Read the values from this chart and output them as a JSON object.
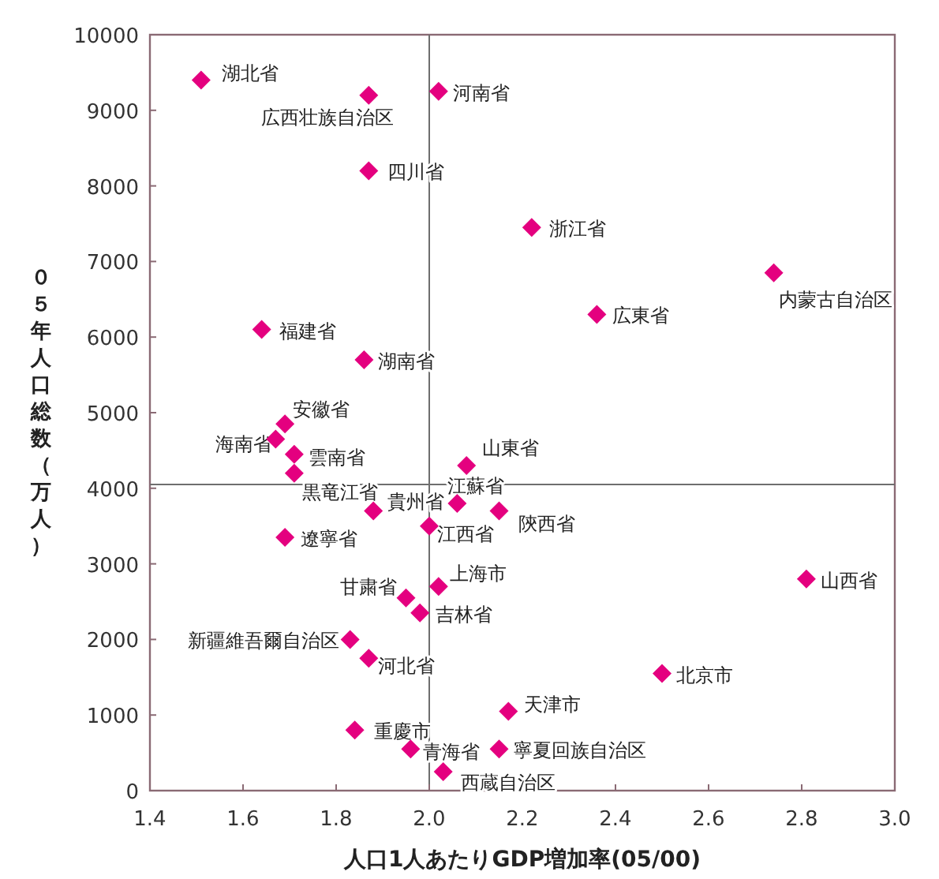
{
  "chart_data": {
    "type": "scatter",
    "xlabel": "人口1人あたりGDP増加率(05/00)",
    "ylabel": "０５年人口総数（万人）",
    "marker": "diamond",
    "xlim": [
      1.4,
      3.0
    ],
    "ylim": [
      0,
      10000
    ],
    "xticks": [
      {
        "value": 1.4,
        "label": "1.4"
      },
      {
        "value": 1.6,
        "label": "1.6"
      },
      {
        "value": 1.8,
        "label": "1.8"
      },
      {
        "value": 2.0,
        "label": "2.0"
      },
      {
        "value": 2.2,
        "label": "2.2"
      },
      {
        "value": 2.4,
        "label": "2.4"
      },
      {
        "value": 2.6,
        "label": "2.6"
      },
      {
        "value": 2.8,
        "label": "2.8"
      },
      {
        "value": 3.0,
        "label": "3.0"
      }
    ],
    "yticks": [
      0,
      1000,
      2000,
      3000,
      4000,
      5000,
      6000,
      7000,
      8000,
      9000,
      10000
    ],
    "ref_lines": [
      {
        "axis": "x",
        "value": 2.0,
        "color": "#6e6e6e"
      },
      {
        "axis": "y",
        "value": 4050,
        "color": "#6e6e6e"
      }
    ],
    "series": [
      {
        "color": "#e4007f",
        "x": [
          1.51,
          1.87,
          2.02,
          1.87,
          2.22,
          2.74,
          2.36,
          1.64,
          1.86,
          1.69,
          1.67,
          1.71,
          1.71,
          2.08,
          1.88,
          2.06,
          2.15,
          2.0,
          1.69,
          2.02,
          2.81,
          1.95,
          1.98,
          1.83,
          1.87,
          2.5,
          2.17,
          1.84,
          1.96,
          2.15,
          2.03
        ],
        "values": [
          9400,
          9200,
          9250,
          8200,
          7450,
          6850,
          6300,
          6100,
          5700,
          4850,
          4650,
          4450,
          4200,
          4300,
          3700,
          3800,
          3700,
          3500,
          3350,
          2700,
          2800,
          2550,
          2350,
          2000,
          1750,
          1550,
          1050,
          800,
          550,
          550,
          250
        ],
        "value_labels": [
          "湖北省",
          "広西壮族自治区",
          "河南省",
          "四川省",
          "浙江省",
          "内蒙古自治区",
          "広東省",
          "福建省",
          "湖南省",
          "安徽省",
          "海南省",
          "雲南省",
          "黒竜江省",
          "山東省",
          "貴州省",
          "江蘇省",
          "陝西省",
          "江西省",
          "遼寧省",
          "上海市",
          "山西省",
          "甘粛省",
          "吉林省",
          "新疆維吾爾自治区",
          "河北省",
          "北京市",
          "天津市",
          "重慶市",
          "青海省",
          "寧夏回族自治区",
          "西蔵自治区"
        ]
      }
    ]
  }
}
